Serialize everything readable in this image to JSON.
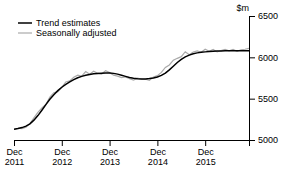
{
  "chart_data": {
    "type": "line",
    "ylabel": "$m",
    "categories": [
      "Dec\n2011",
      null,
      null,
      null,
      null,
      null,
      null,
      null,
      null,
      null,
      null,
      null,
      "Dec\n2012",
      null,
      null,
      null,
      null,
      null,
      null,
      null,
      null,
      null,
      null,
      null,
      "Dec\n2013",
      null,
      null,
      null,
      null,
      null,
      null,
      null,
      null,
      null,
      null,
      null,
      "Dec\n2014",
      null,
      null,
      null,
      null,
      null,
      null,
      null,
      null,
      null,
      null,
      null,
      "Dec\n2015",
      null,
      null,
      null,
      null,
      null,
      null,
      null,
      null,
      null,
      null,
      null
    ],
    "series": [
      {
        "name": "Trend estimates",
        "color": "#000000",
        "values": [
          5130,
          5138,
          5150,
          5168,
          5195,
          5240,
          5295,
          5360,
          5428,
          5492,
          5548,
          5597,
          5638,
          5672,
          5703,
          5730,
          5753,
          5770,
          5783,
          5793,
          5800,
          5805,
          5808,
          5810,
          5810,
          5806,
          5797,
          5784,
          5770,
          5757,
          5747,
          5740,
          5737,
          5738,
          5743,
          5751,
          5763,
          5782,
          5810,
          5848,
          5893,
          5938,
          5975,
          6005,
          6027,
          6043,
          6054,
          6061,
          6066,
          6070,
          6074,
          6076,
          6078,
          6079,
          6080,
          6080,
          6080,
          6080,
          6080,
          6081
        ]
      },
      {
        "name": "Seasonally adjusted",
        "color": "#aaaaaa",
        "values": [
          5128,
          5142,
          5138,
          5155,
          5198,
          5268,
          5335,
          5388,
          5430,
          5518,
          5572,
          5585,
          5638,
          5702,
          5715,
          5758,
          5785,
          5772,
          5828,
          5795,
          5832,
          5808,
          5798,
          5838,
          5815,
          5785,
          5772,
          5755,
          5762,
          5742,
          5725,
          5748,
          5738,
          5735,
          5722,
          5762,
          5778,
          5818,
          5878,
          5908,
          5965,
          5988,
          6008,
          6068,
          6032,
          6065,
          6078,
          6062,
          6098,
          6072,
          6095,
          6065,
          6082,
          6095,
          6078,
          6095,
          6072,
          6092,
          6098,
          6108
        ]
      }
    ],
    "ylim": [
      5000,
      6500
    ],
    "yticks": [
      5000,
      5500,
      6000,
      6500
    ],
    "grid": false,
    "legend": "upper left"
  }
}
